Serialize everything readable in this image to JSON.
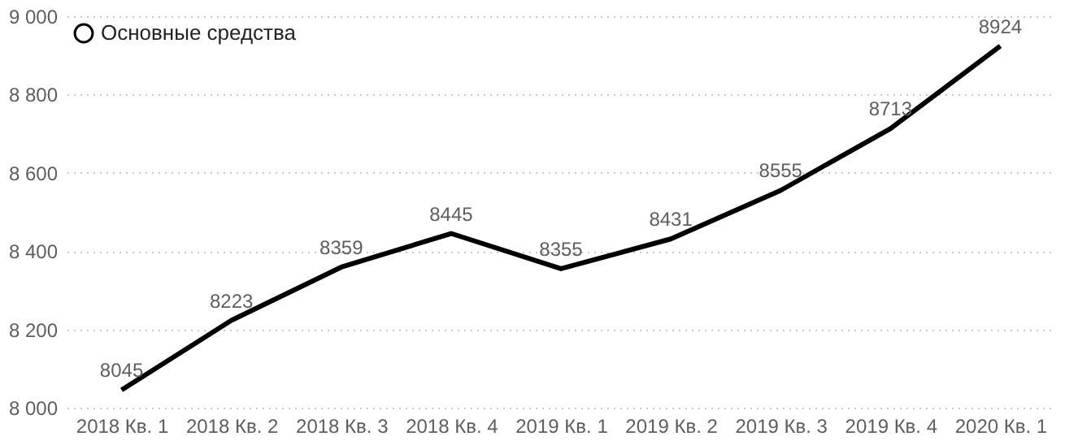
{
  "chart_data": {
    "type": "line",
    "categories": [
      "2018 Кв. 1",
      "2018 Кв. 2",
      "2018 Кв. 3",
      "2018 Кв. 4",
      "2019 Кв. 1",
      "2019 Кв. 2",
      "2019 Кв. 3",
      "2019 Кв. 4",
      "2020 Кв. 1"
    ],
    "series": [
      {
        "name": "Основные средства",
        "color": "#000000",
        "values": [
          8045,
          8223,
          8359,
          8445,
          8355,
          8431,
          8555,
          8713,
          8924
        ]
      }
    ],
    "ylim": [
      8000,
      9000
    ],
    "yticks": [
      {
        "value": 8000,
        "label": "8 000"
      },
      {
        "value": 8200,
        "label": "8 200"
      },
      {
        "value": 8400,
        "label": "8 400"
      },
      {
        "value": 8600,
        "label": "8 600"
      },
      {
        "value": 8800,
        "label": "8 800"
      },
      {
        "value": 9000,
        "label": "9 000"
      }
    ],
    "grid": "y",
    "legend": "top left",
    "data_labels": true,
    "marker": "none",
    "line_style": "solid"
  }
}
